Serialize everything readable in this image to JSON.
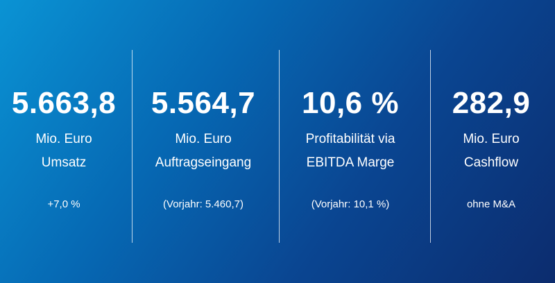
{
  "kpis": [
    {
      "value": "5.663,8",
      "lines": [
        "Mio. Euro",
        "Umsatz"
      ],
      "note": "+7,0 %"
    },
    {
      "value": "5.564,7",
      "lines": [
        "Mio. Euro",
        "Auftragseingang"
      ],
      "note": "(Vorjahr: 5.460,7)"
    },
    {
      "value": "10,6 %",
      "lines": [
        "Profitabilität via",
        "EBITDA Marge"
      ],
      "note": "(Vorjahr: 10,1 %)"
    },
    {
      "value": "282,9",
      "lines": [
        "Mio. Euro",
        "Cashflow"
      ],
      "note": "ohne M&A"
    }
  ]
}
